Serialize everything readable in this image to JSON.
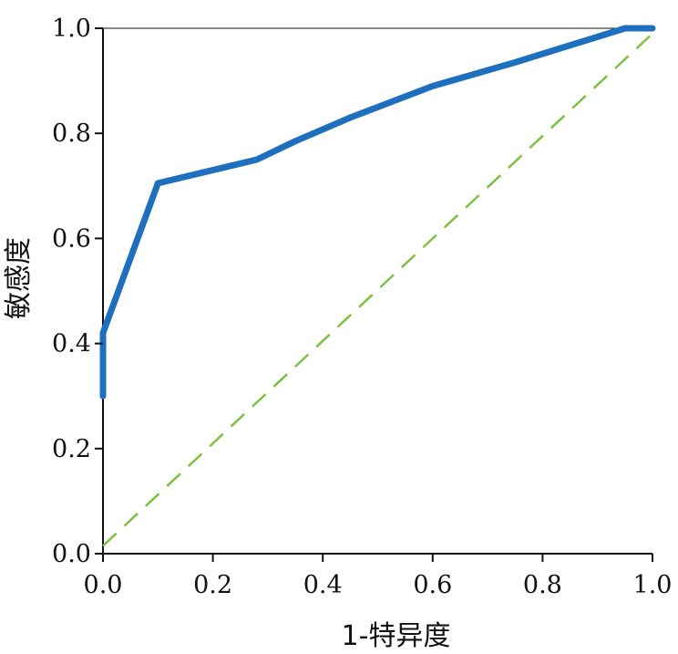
{
  "chart_data": {
    "type": "line",
    "title": "",
    "xlabel": "1-特异度",
    "ylabel": "敏感度",
    "xlim": [
      0,
      1
    ],
    "ylim": [
      0,
      1
    ],
    "x_ticks": [
      "0.0",
      "0.2",
      "0.4",
      "0.6",
      "0.8",
      "1.0"
    ],
    "y_ticks": [
      "0.0",
      "0.2",
      "0.4",
      "0.6",
      "0.8",
      "1.0"
    ],
    "grid": false,
    "legend": "none",
    "series": [
      {
        "style": "solid",
        "color": "#1f6fbf",
        "x": [
          0.0,
          0.0,
          0.0,
          0.1,
          0.28,
          0.35,
          0.45,
          0.6,
          0.75,
          0.95,
          1.0
        ],
        "y": [
          0.3,
          0.36,
          0.42,
          0.705,
          0.75,
          0.785,
          0.83,
          0.89,
          0.935,
          1.0,
          1.0
        ]
      },
      {
        "style": "dashed",
        "color": "#7dc142",
        "x": [
          0.0,
          1.0
        ],
        "y": [
          0.015,
          0.99
        ]
      }
    ]
  }
}
